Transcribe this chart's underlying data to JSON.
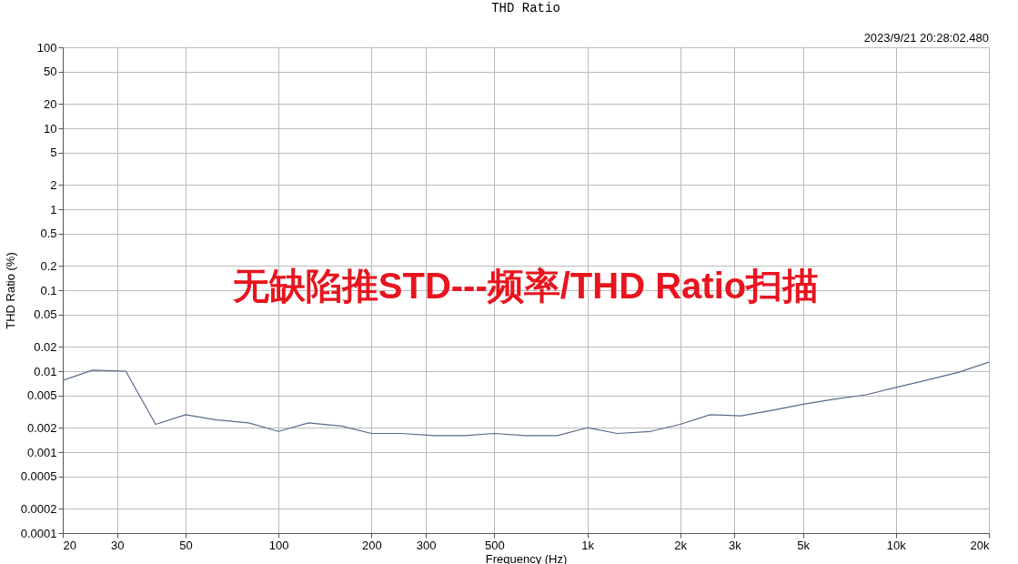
{
  "chart_data": {
    "type": "line",
    "title": "THD Ratio",
    "xlabel": "Frequency (Hz)",
    "ylabel": "THD Ratio (%)",
    "annotations": [
      "2023/9/21 20:28:02.480",
      "无缺陷推STD---频率/THD Ratio扫描"
    ],
    "x": [
      20,
      25,
      32,
      40,
      50,
      63,
      80,
      100,
      125,
      160,
      200,
      250,
      320,
      400,
      500,
      630,
      800,
      1000,
      1250,
      1600,
      2000,
      2500,
      3150,
      4000,
      5000,
      6300,
      8000,
      10000,
      12500,
      16000,
      20000
    ],
    "series": [
      {
        "color": "#5a6a8c",
        "values": [
          0.0077,
          0.0103,
          0.01,
          0.0022,
          0.0029,
          0.0025,
          0.0023,
          0.0018,
          0.0023,
          0.0021,
          0.0017,
          0.0017,
          0.0016,
          0.0016,
          0.0017,
          0.0016,
          0.0016,
          0.002,
          0.0017,
          0.0018,
          0.0022,
          0.0029,
          0.0028,
          0.0033,
          0.0039,
          0.0045,
          0.0051,
          0.0063,
          0.0077,
          0.0097,
          0.0129
        ]
      }
    ],
    "xlim": [
      20,
      20000
    ],
    "ylim": [
      0.0001,
      100
    ],
    "log": "xy",
    "grid": true,
    "marker": "none",
    "line_style": "solid",
    "xticks": [
      20,
      30,
      50,
      100,
      200,
      300,
      500,
      {
        "value": 1000,
        "label": "1k"
      },
      {
        "value": 2000,
        "label": "2k"
      },
      {
        "value": 3000,
        "label": "3k"
      },
      {
        "value": 5000,
        "label": "5k"
      },
      {
        "value": 10000,
        "label": "10k"
      },
      {
        "value": 20000,
        "label": "20k"
      }
    ],
    "yticks": [
      100,
      50,
      20,
      10,
      5,
      2,
      1,
      0.5,
      0.2,
      0.1,
      0.05,
      0.02,
      0.01,
      0.005,
      0.002,
      0.001,
      0.0005,
      0.0002,
      0.0001
    ]
  }
}
